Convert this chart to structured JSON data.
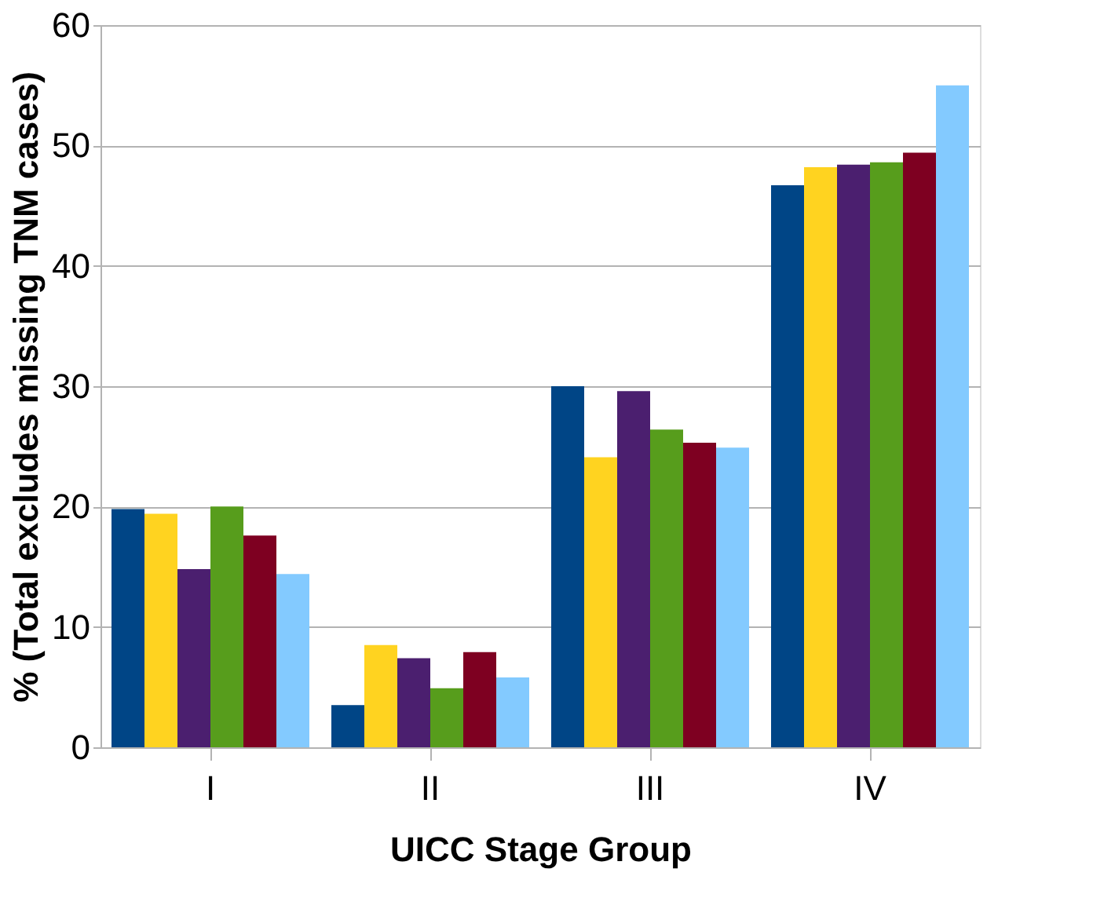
{
  "chart_data": {
    "type": "bar",
    "xlabel": "UICC Stage Group",
    "ylabel": "% (Total excludes missing TNM cases)",
    "categories": [
      "I",
      "II",
      "III",
      "IV"
    ],
    "series": [
      {
        "color": "#004586",
        "values": [
          19.8,
          3.5,
          30.0,
          46.7
        ]
      },
      {
        "color": "#ffd320",
        "values": [
          19.4,
          8.5,
          24.1,
          48.2
        ]
      },
      {
        "color": "#4b1f6f",
        "values": [
          14.8,
          7.4,
          29.6,
          48.4
        ]
      },
      {
        "color": "#579d1c",
        "values": [
          20.0,
          4.9,
          26.4,
          48.6
        ]
      },
      {
        "color": "#7e0021",
        "values": [
          17.6,
          7.9,
          25.3,
          49.4
        ]
      },
      {
        "color": "#83caff",
        "values": [
          14.4,
          5.8,
          24.9,
          55.0
        ]
      }
    ],
    "ylim": [
      0,
      60
    ],
    "yticks": [
      0,
      10,
      20,
      30,
      40,
      50,
      60
    ],
    "grid": "y",
    "legend": false
  }
}
